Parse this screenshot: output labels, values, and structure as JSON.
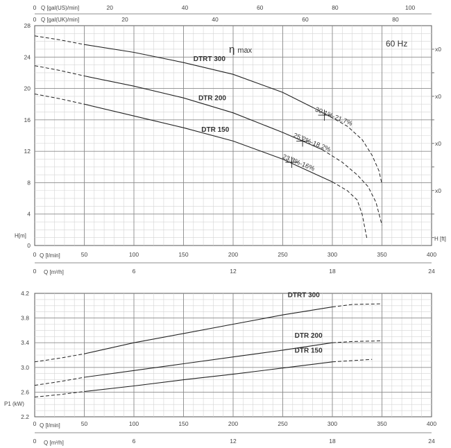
{
  "chart_data": [
    {
      "type": "line",
      "title": "",
      "top_axis_flow_us": {
        "label": "Q [gal(US)/min]",
        "ticks": [
          "0",
          "20",
          "40",
          "60",
          "80",
          "100"
        ],
        "range": [
          0,
          105.7
        ]
      },
      "top_axis_flow_uk": {
        "label": "Q [gal(UK)/min]",
        "ticks": [
          "0",
          "20",
          "40",
          "60",
          "80"
        ],
        "range": [
          0,
          88
        ]
      },
      "x_axis_lmin": {
        "label": "Q [l/min]",
        "ticks": [
          "0",
          "50",
          "100",
          "150",
          "200",
          "250",
          "300",
          "350",
          "400"
        ],
        "range": [
          0,
          400
        ]
      },
      "x_axis_m3h": {
        "label": "Q [m³/h]",
        "ticks": [
          "0",
          "6",
          "12",
          "18",
          "24"
        ],
        "range": [
          0,
          24
        ]
      },
      "y_axis_left": {
        "label": "H[m]",
        "ticks": [
          "0",
          "4",
          "8",
          "12",
          "16",
          "20",
          "24",
          "28"
        ],
        "range": [
          0,
          28
        ]
      },
      "y_axis_right": {
        "label": "H [ft]",
        "ticks": [
          "x0",
          "x0",
          "x0",
          "x0"
        ]
      },
      "frequency_label": "60 Hz",
      "efficiency_label": "η max",
      "series": [
        {
          "name": "DTRT 300",
          "solid": [
            [
              50,
              25.6
            ],
            [
              100,
              24.6
            ],
            [
              150,
              23.3
            ],
            [
              200,
              21.8
            ],
            [
              250,
              19.5
            ],
            [
              280,
              17.6
            ],
            [
              298,
              16.4
            ]
          ],
          "dashed_start": [
            [
              0,
              26.7
            ],
            [
              25,
              26.2
            ],
            [
              50,
              25.6
            ]
          ],
          "dashed_end": [
            [
              298,
              16.4
            ],
            [
              315,
              15.2
            ],
            [
              330,
              13.5
            ],
            [
              340,
              11.5
            ],
            [
              347,
              9.5
            ],
            [
              350,
              7.8
            ]
          ],
          "efficiency_mark": {
            "q": 292,
            "h": 16.6,
            "label": "30.1%-21.7%"
          }
        },
        {
          "name": "DTR 200",
          "solid": [
            [
              50,
              21.6
            ],
            [
              100,
              20.3
            ],
            [
              150,
              18.8
            ],
            [
              200,
              16.9
            ],
            [
              250,
              14.4
            ],
            [
              290,
              12.2
            ]
          ],
          "dashed_start": [
            [
              0,
              22.9
            ],
            [
              25,
              22.3
            ],
            [
              50,
              21.6
            ]
          ],
          "dashed_end": [
            [
              290,
              12.2
            ],
            [
              310,
              10.6
            ],
            [
              325,
              9.0
            ],
            [
              336,
              7.5
            ],
            [
              344,
              5.5
            ],
            [
              350,
              2.6
            ]
          ],
          "efficiency_mark": {
            "q": 270,
            "h": 13.3,
            "label": "25.2%-18.2%"
          }
        },
        {
          "name": "DTR 150",
          "solid": [
            [
              50,
              18.0
            ],
            [
              100,
              16.5
            ],
            [
              150,
              15.0
            ],
            [
              200,
              13.3
            ],
            [
              250,
              11.0
            ],
            [
              300,
              8.1
            ]
          ],
          "dashed_start": [
            [
              0,
              19.3
            ],
            [
              25,
              18.7
            ],
            [
              50,
              18.0
            ]
          ],
          "dashed_end": [
            [
              300,
              8.1
            ],
            [
              315,
              7.0
            ],
            [
              325,
              5.8
            ],
            [
              330,
              4.0
            ],
            [
              335,
              0.8
            ]
          ],
          "efficiency_mark": {
            "q": 259,
            "h": 10.6,
            "label": "23.3%-16%"
          }
        }
      ]
    },
    {
      "type": "line",
      "title": "",
      "x_axis_lmin": {
        "label": "Q [l/min]",
        "ticks": [
          "0",
          "50",
          "100",
          "150",
          "200",
          "250",
          "300",
          "350",
          "400"
        ],
        "range": [
          0,
          400
        ]
      },
      "x_axis_m3h": {
        "label": "Q [m³/h]",
        "ticks": [
          "0",
          "6",
          "12",
          "18",
          "24"
        ],
        "range": [
          0,
          24
        ]
      },
      "y_axis": {
        "label": "P1 (kW)",
        "ticks": [
          "2.2",
          "2.6",
          "3.0",
          "3.4",
          "3.8",
          "4.2"
        ],
        "range": [
          2.2,
          4.2
        ]
      },
      "series": [
        {
          "name": "DTRT 300",
          "solid": [
            [
              50,
              3.22
            ],
            [
              100,
              3.4
            ],
            [
              150,
              3.55
            ],
            [
              200,
              3.7
            ],
            [
              250,
              3.85
            ],
            [
              300,
              3.98
            ]
          ],
          "dashed_start": [
            [
              0,
              3.09
            ],
            [
              25,
              3.15
            ],
            [
              50,
              3.22
            ]
          ],
          "dashed_end": [
            [
              300,
              3.98
            ],
            [
              320,
              4.02
            ],
            [
              350,
              4.03
            ]
          ]
        },
        {
          "name": "DTR 200",
          "solid": [
            [
              50,
              2.84
            ],
            [
              100,
              2.95
            ],
            [
              150,
              3.06
            ],
            [
              200,
              3.17
            ],
            [
              250,
              3.28
            ],
            [
              300,
              3.4
            ]
          ],
          "dashed_start": [
            [
              0,
              2.71
            ],
            [
              25,
              2.77
            ],
            [
              50,
              2.84
            ]
          ],
          "dashed_end": [
            [
              300,
              3.4
            ],
            [
              320,
              3.42
            ],
            [
              350,
              3.43
            ]
          ]
        },
        {
          "name": "DTR 150",
          "solid": [
            [
              50,
              2.61
            ],
            [
              100,
              2.7
            ],
            [
              150,
              2.8
            ],
            [
              200,
              2.89
            ],
            [
              250,
              2.99
            ],
            [
              300,
              3.09
            ]
          ],
          "dashed_start": [
            [
              0,
              2.52
            ],
            [
              25,
              2.56
            ],
            [
              50,
              2.61
            ]
          ],
          "dashed_end": [
            [
              300,
              3.09
            ],
            [
              320,
              3.11
            ],
            [
              340,
              3.13
            ]
          ]
        }
      ]
    }
  ]
}
